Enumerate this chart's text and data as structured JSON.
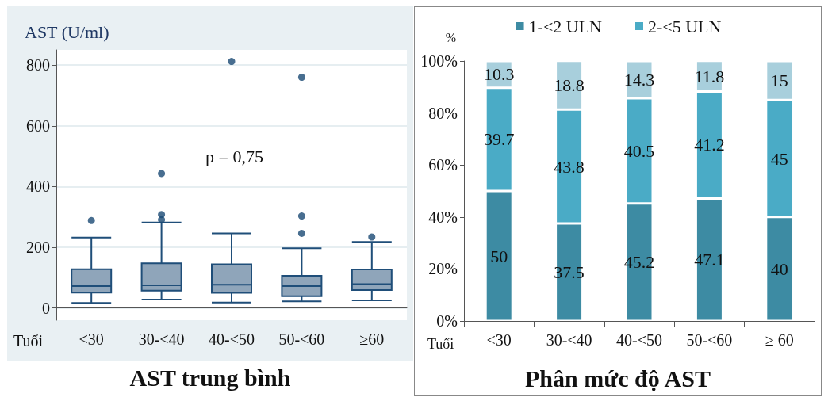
{
  "chart_data": [
    {
      "type": "box",
      "title": "AST trung bình",
      "ylabel": "AST (U/ml)",
      "xlabel": "Tuổi",
      "categories": [
        "<30",
        "30-<40",
        "40-<50",
        "50-<60",
        "≥60"
      ],
      "ylim": [
        -40,
        850
      ],
      "yticks": [
        0,
        200,
        400,
        600,
        800
      ],
      "grid": "y",
      "legend": false,
      "annotations": [
        "p = 0,75"
      ],
      "series": [
        {
          "color": "#8fa5ba",
          "boxes": [
            {
              "low": 17,
              "q1": 51,
              "median": 72,
              "q3": 128,
              "high": 232,
              "outliers": [
                288
              ]
            },
            {
              "low": 28,
              "q1": 57,
              "median": 75,
              "q3": 147,
              "high": 282,
              "outliers": [
                291,
                308,
                443
              ]
            },
            {
              "low": 18,
              "q1": 50,
              "median": 77,
              "q3": 144,
              "high": 246,
              "outliers": [
                812
              ]
            },
            {
              "low": 22,
              "q1": 39,
              "median": 72,
              "q3": 106,
              "high": 197,
              "outliers": [
                246,
                303,
                760
              ]
            },
            {
              "low": 25,
              "q1": 59,
              "median": 79,
              "q3": 127,
              "high": 218,
              "outliers": [
                234
              ]
            }
          ]
        }
      ]
    },
    {
      "type": "bar",
      "title": "Phân mức độ AST",
      "ylabel": "%",
      "xlabel": "Tuổi",
      "categories": [
        "<30",
        "30-<40",
        "40-<50",
        "50-<60",
        "≥ 60"
      ],
      "stacked": true,
      "data_labels": true,
      "grid": false,
      "legend": "top",
      "ylim": [
        0,
        100
      ],
      "yticks": [
        {
          "value": 0,
          "label": "0%"
        },
        {
          "value": 20,
          "label": "20%"
        },
        {
          "value": 40,
          "label": "40%"
        },
        {
          "value": 60,
          "label": "60%"
        },
        {
          "value": 80,
          "label": "80%"
        },
        {
          "value": 100,
          "label": "100%"
        }
      ],
      "series": [
        {
          "name": "1-<2 ULN",
          "color": "#3d8ba3",
          "values": [
            50,
            37.5,
            45.2,
            47.1,
            40
          ]
        },
        {
          "name": "2-<5 ULN",
          "color": "#4aabc6",
          "values": [
            39.7,
            43.8,
            40.5,
            41.2,
            45
          ]
        },
        {
          "color": "#a8cfdc",
          "values": [
            10.3,
            18.8,
            14.3,
            11.8,
            15
          ]
        }
      ]
    }
  ]
}
